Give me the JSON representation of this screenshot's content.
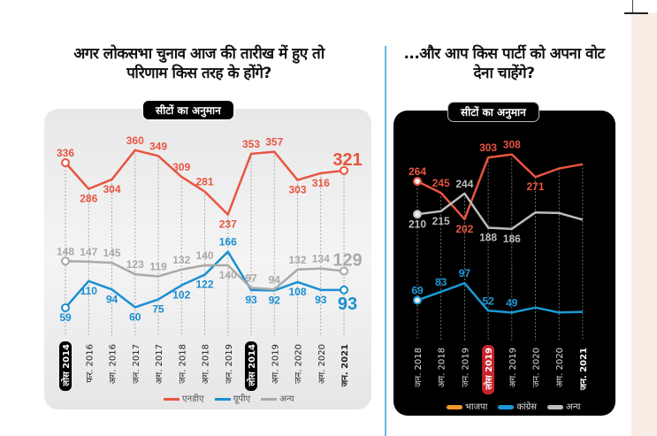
{
  "left": {
    "title": "अगर लोकसभा चुनाव आज की तारीख में हुए तो परिणाम किस तरह के होंगे?",
    "badge": "सीटों का अनुमान"
  },
  "right": {
    "title": "...और आप किस पार्टी को अपना वोट देना चाहेंगे?",
    "badge": "सीटों का अनुमान"
  },
  "chart_data": [
    {
      "type": "line",
      "categories": [
        "लोस 2014",
        "फर. 2016",
        "अग. 2016",
        "जन. 2017",
        "अग. 2017",
        "जन. 2018",
        "अग. 2018",
        "जन. 2019",
        "लोस 2014",
        "अग. 2019",
        "जन. 2020",
        "अग. 2020",
        "जन. 2021"
      ],
      "highlighted_categories": [
        0,
        8
      ],
      "series": [
        {
          "name": "एनडीए",
          "color": "#e8553f",
          "values": [
            336,
            286,
            304,
            360,
            349,
            309,
            281,
            237,
            353,
            357,
            303,
            316,
            321
          ]
        },
        {
          "name": "यूपीए",
          "color": "#1a8fd0",
          "values": [
            59,
            110,
            94,
            60,
            75,
            102,
            122,
            166,
            93,
            92,
            108,
            93,
            93
          ]
        },
        {
          "name": "अन्य",
          "color": "#a9a9a9",
          "values": [
            148,
            147,
            145,
            123,
            119,
            132,
            140,
            140,
            97,
            94,
            132,
            134,
            129
          ]
        }
      ],
      "grid": false,
      "legend": "bottom"
    },
    {
      "type": "line",
      "categories": [
        "जन. 2018",
        "अग. 2018",
        "जन. 2019",
        "लोस 2019",
        "अग. 2019",
        "जन. 2020",
        "अग. 2020",
        "जन. 2021"
      ],
      "highlighted_categories": [
        3
      ],
      "series": [
        {
          "name": "भाजपा",
          "color": "#e8553f",
          "legend_color": "#f39a2b",
          "values": [
            264,
            245,
            202,
            303,
            308,
            271,
            285,
            292
          ],
          "labels": [
            "264",
            "245",
            "202",
            "303",
            "308",
            "271",
            null,
            null
          ]
        },
        {
          "name": "कांग्रेस",
          "color": "#1a9ad6",
          "values": [
            69,
            83,
            97,
            52,
            49,
            57,
            49,
            50
          ],
          "labels": [
            "69",
            "83",
            "97",
            "52",
            "49",
            null,
            null,
            null
          ]
        },
        {
          "name": "अन्य",
          "color": "#bdbdbd",
          "values": [
            210,
            215,
            244,
            188,
            186,
            213,
            212,
            201
          ],
          "labels": [
            "210",
            "215",
            "244",
            "188",
            "186",
            null,
            null,
            null
          ]
        }
      ],
      "grid": false,
      "legend": "bottom"
    }
  ]
}
